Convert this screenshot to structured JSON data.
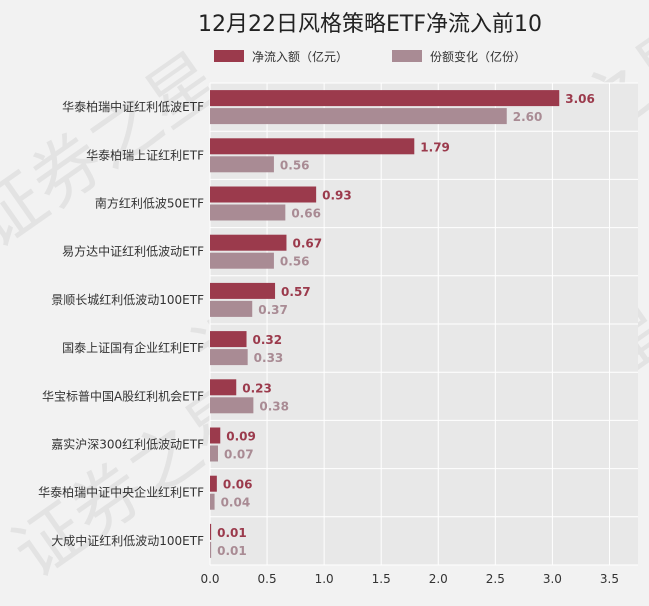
{
  "chart_data": {
    "type": "bar",
    "orientation": "horizontal",
    "title": "12月22日风格策略ETF净流入前10",
    "categories": [
      "华泰柏瑞中证红利低波ETF",
      "华泰柏瑞上证红利ETF",
      "南方红利低波50ETF",
      "易方达中证红利低波动ETF",
      "景顺长城红利低波动100ETF",
      "国泰上证国有企业红利ETF",
      "华宝标普中国A股红利机会ETF",
      "嘉实沪深300红利低波动ETF",
      "华泰柏瑞中证中央企业红利ETF",
      "大成中证红利低波动100ETF"
    ],
    "series": [
      {
        "name": "净流入额（亿元）",
        "color": "#9b3a4c",
        "values": [
          3.06,
          1.79,
          0.93,
          0.67,
          0.57,
          0.32,
          0.23,
          0.09,
          0.06,
          0.01
        ],
        "labels": [
          "3.06",
          "1.79",
          "0.93",
          "0.67",
          "0.57",
          "0.32",
          "0.23",
          "0.09",
          "0.06",
          "0.01"
        ]
      },
      {
        "name": "份额变化（亿份）",
        "color": "#a98b94",
        "values": [
          2.6,
          0.56,
          0.66,
          0.56,
          0.37,
          0.33,
          0.38,
          0.07,
          0.04,
          0.01
        ],
        "labels": [
          "2.60",
          "0.56",
          "0.66",
          "0.56",
          "0.37",
          "0.33",
          "0.38",
          "0.07",
          "0.04",
          "0.01"
        ]
      }
    ],
    "xlim": [
      0,
      3.75
    ],
    "xticks": [
      "0.0",
      "0.5",
      "1.0",
      "1.5",
      "2.0",
      "2.5",
      "3.0",
      "3.5"
    ],
    "grid": true,
    "legend_position": "top",
    "background": "#e8e8e8"
  },
  "watermark": "证券之星"
}
